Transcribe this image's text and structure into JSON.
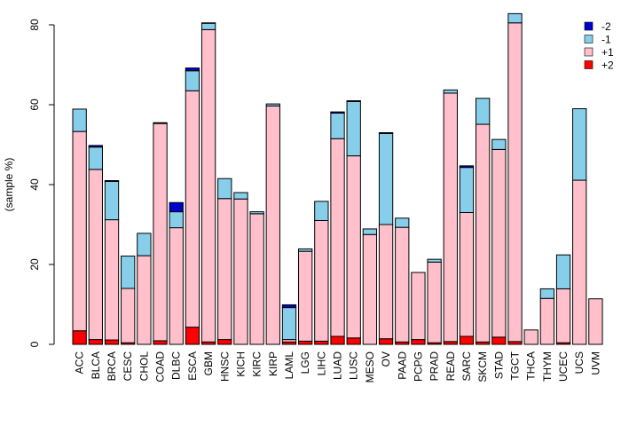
{
  "chart_data": {
    "type": "bar",
    "stacked": true,
    "title": "",
    "xlabel": "",
    "ylabel": "(sample %)",
    "ylim": [
      0,
      83
    ],
    "yticks": [
      0,
      20,
      40,
      60,
      80
    ],
    "legend_position": "top-right",
    "categories": [
      "ACC",
      "BLCA",
      "BRCA",
      "CESC",
      "CHOL",
      "COAD",
      "DLBC",
      "ESCA",
      "GBM",
      "HNSC",
      "KICH",
      "KIRC",
      "KIRP",
      "LAML",
      "LGG",
      "LIHC",
      "LUAD",
      "LUSC",
      "MESO",
      "OV",
      "PAAD",
      "PCPG",
      "PRAD",
      "READ",
      "SARC",
      "SKCM",
      "STAD",
      "TGCT",
      "THCA",
      "THYM",
      "UCEC",
      "UCS",
      "UVM"
    ],
    "series": [
      {
        "name": "+2",
        "color": "#ff0000",
        "values": [
          3.4,
          1.2,
          1.1,
          0.4,
          0,
          0.9,
          0,
          4.3,
          0.6,
          1.2,
          0,
          0,
          0,
          0.6,
          0.8,
          0.8,
          2.0,
          1.6,
          0,
          1.4,
          0.6,
          1.2,
          0.4,
          0.7,
          2.0,
          0.6,
          1.8,
          0.7,
          0,
          0,
          0.4,
          0,
          0
        ]
      },
      {
        "name": "+1",
        "color": "#ffc0cb",
        "values": [
          49.9,
          42.6,
          30.1,
          13.6,
          22.2,
          54.4,
          29.2,
          59.2,
          78.2,
          35.3,
          36.4,
          32.7,
          59.7,
          0.6,
          22.5,
          30.2,
          49.5,
          45.6,
          27.5,
          28.6,
          28.7,
          16.8,
          20.2,
          62.2,
          31.0,
          54.5,
          47.0,
          79.8,
          3.6,
          11.5,
          13.5,
          41.1,
          11.4
        ]
      },
      {
        "name": "-1",
        "color": "#87ceeb",
        "values": [
          5.6,
          5.6,
          9.6,
          8.1,
          5.6,
          0.2,
          4.0,
          5.0,
          1.6,
          5.0,
          1.6,
          0.5,
          0.5,
          8.0,
          0.6,
          4.8,
          6.4,
          13.6,
          1.4,
          22.8,
          2.3,
          0,
          0.7,
          0.8,
          11.3,
          6.5,
          2.5,
          2.3,
          0,
          2.4,
          8.5,
          17.9,
          0
        ]
      },
      {
        "name": "-2",
        "color": "#0000cd",
        "values": [
          0,
          0.4,
          0.2,
          0,
          0,
          0,
          2.3,
          0.7,
          0.1,
          0,
          0,
          0,
          0,
          0.7,
          0,
          0,
          0.3,
          0.2,
          0,
          0.2,
          0,
          0,
          0,
          0,
          0.4,
          0,
          0,
          0,
          0,
          0,
          0,
          0,
          0
        ]
      }
    ],
    "legend_order": [
      "-2",
      "-1",
      "+1",
      "+2"
    ]
  }
}
